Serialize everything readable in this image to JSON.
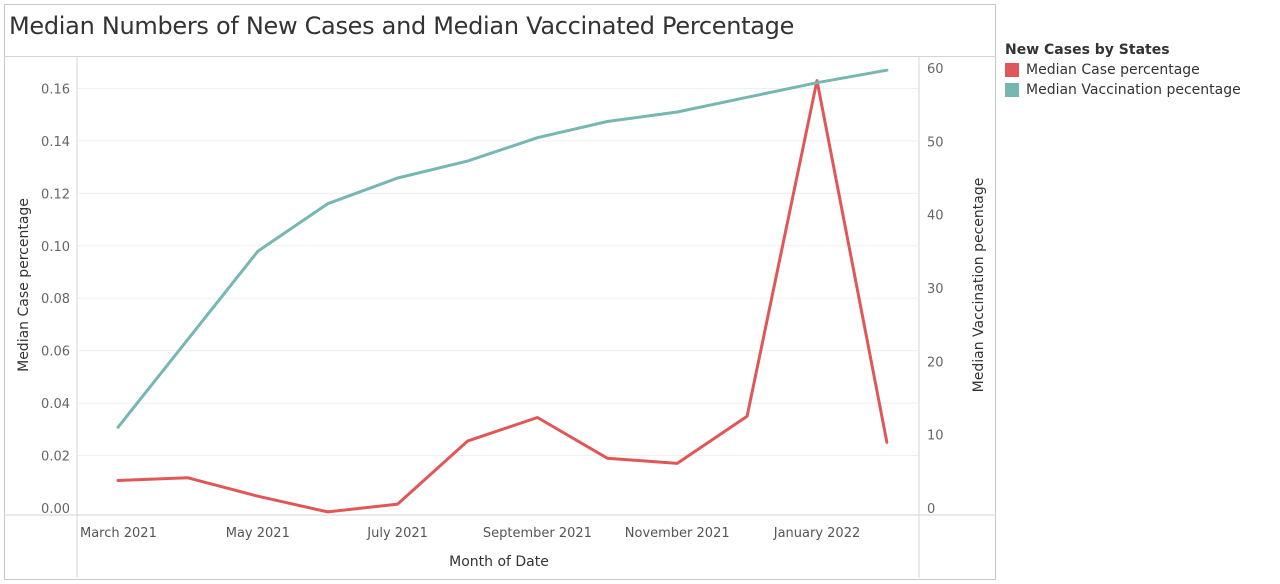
{
  "title": "Median Numbers of New Cases and Median Vaccinated Percentage",
  "legend": {
    "title": "New Cases by States",
    "items": [
      {
        "label": "Median Case percentage",
        "color": "#e15759"
      },
      {
        "label": "Median Vaccination pecentage",
        "color": "#76b7b2"
      }
    ]
  },
  "chart_data": {
    "type": "line",
    "title": "Median Numbers of New Cases and Median Vaccinated Percentage",
    "xlabel": "Month of Date",
    "ylabel": "Median Case percentage",
    "ylabel_right": "Median Vaccination pecentage",
    "x": [
      "2021-03",
      "2021-04",
      "2021-05",
      "2021-06",
      "2021-07",
      "2021-08",
      "2021-09",
      "2021-10",
      "2021-11",
      "2021-12",
      "2022-01",
      "2022-02"
    ],
    "x_tick_labels": [
      "March 2021",
      "May 2021",
      "July 2021",
      "September 2021",
      "November 2021",
      "January 2022"
    ],
    "y_ticks_left": [
      "0.00",
      "0.02",
      "0.04",
      "0.06",
      "0.08",
      "0.10",
      "0.12",
      "0.14",
      "0.16"
    ],
    "y_ticks_right": [
      "0",
      "10",
      "20",
      "30",
      "40",
      "50",
      "60"
    ],
    "ylim": [
      0,
      0.172
    ],
    "ylim_right": [
      0,
      61.5
    ],
    "series": [
      {
        "name": "Median Case percentage",
        "axis": "left",
        "color": "#e15759",
        "values": [
          0.0105,
          0.0115,
          0.0045,
          -0.0015,
          0.0015,
          0.0255,
          0.0345,
          0.019,
          0.017,
          0.035,
          0.163,
          0.025
        ]
      },
      {
        "name": "Median Vaccination pecentage",
        "axis": "right",
        "color": "#76b7b2",
        "values": [
          11.0,
          23.0,
          35.0,
          41.5,
          45.0,
          47.3,
          50.5,
          52.7,
          54.0,
          56.0,
          58.0,
          59.7
        ]
      }
    ],
    "grid": true
  }
}
